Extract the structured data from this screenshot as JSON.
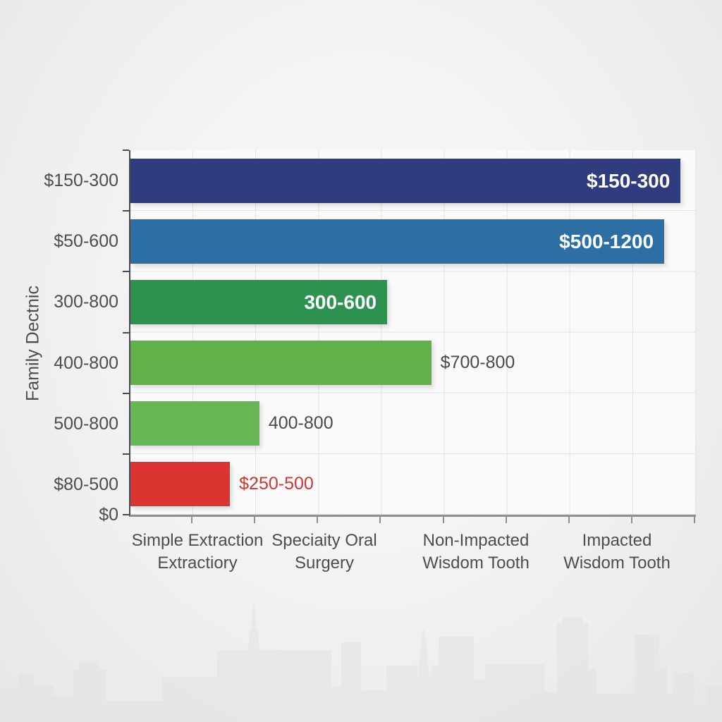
{
  "colors": {
    "page_bg_center": "#f5f5f5",
    "page_bg_edge": "#e7e7e7",
    "plot_bg": "#fafafa",
    "grid": "#e3e3e3",
    "y_axis": "#4a4b52",
    "x_axis": "#8f8f8f",
    "axis_label": "#4d4d4d",
    "skyline": "#e1e1e1"
  },
  "chart_data": {
    "type": "bar",
    "orientation": "horizontal",
    "y_axis_title": "Family Dectnic",
    "origin_tick_label": "$0",
    "grid": true,
    "rows": [
      {
        "axis_label": "$150-300",
        "bar_label": "$150-300",
        "label_placement": "inside",
        "color": "#2f3d7e",
        "length_pct": 97.3
      },
      {
        "axis_label": "$50-600",
        "bar_label": "$500-1200",
        "label_placement": "inside",
        "color": "#2d6fa5",
        "length_pct": 94.4
      },
      {
        "axis_label": "300-800",
        "bar_label": "300-600",
        "label_placement": "inside",
        "color": "#2d9150",
        "length_pct": 45.4
      },
      {
        "axis_label": "400-800",
        "bar_label": "$700-800",
        "label_placement": "outside",
        "color": "#61b04b",
        "length_pct": 53.2,
        "label_color": "#4a4a4a"
      },
      {
        "axis_label": "500-800",
        "bar_label": "400-800",
        "label_placement": "outside",
        "color": "#68b756",
        "length_pct": 22.8,
        "label_color": "#4a4a4a"
      },
      {
        "axis_label": "$80-500",
        "bar_label": "$250-500",
        "label_placement": "outside",
        "color": "#dc3431",
        "length_pct": 17.6,
        "label_color": "#d5342f"
      }
    ],
    "x_categories": [
      {
        "line1": "Simple Extraction",
        "line2": "Extractiory"
      },
      {
        "line1": "Speciaity  Oral",
        "line2": "Surgery"
      },
      {
        "line1": "Non-Impacted",
        "line2": "Wisdom Tooth"
      },
      {
        "line1": "Impacted",
        "line2": "Wisdom Tooth"
      }
    ]
  }
}
